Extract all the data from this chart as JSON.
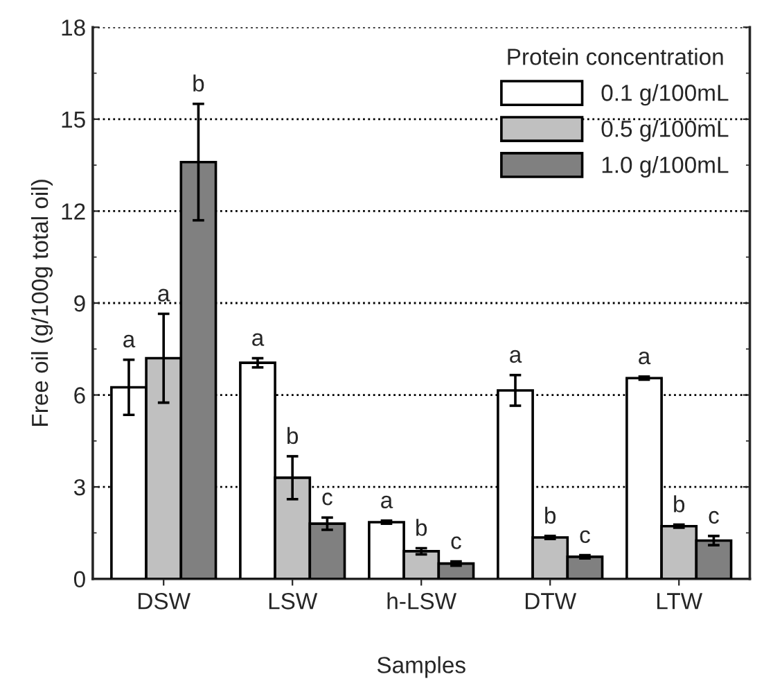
{
  "chart_data": {
    "type": "bar",
    "xlabel": "Samples",
    "ylabel": "Free oil (g/100g total oil)",
    "categories": [
      "DSW",
      "LSW",
      "h-LSW",
      "DTW",
      "LTW"
    ],
    "series": [
      {
        "name": "0.1 g/100mL",
        "color": "#ffffff",
        "values": [
          6.25,
          7.05,
          1.85,
          6.15,
          6.55
        ],
        "errors": [
          0.9,
          0.15,
          0.05,
          0.5,
          0.05
        ]
      },
      {
        "name": "0.5 g/100mL",
        "color": "#c0c0c0",
        "values": [
          7.2,
          3.3,
          0.9,
          1.35,
          1.72
        ],
        "errors": [
          1.45,
          0.7,
          0.1,
          0.05,
          0.05
        ]
      },
      {
        "name": "1.0 g/100mL",
        "color": "#808080",
        "values": [
          13.6,
          1.8,
          0.5,
          0.72,
          1.25
        ],
        "errors": [
          1.9,
          0.2,
          0.07,
          0.05,
          0.15
        ]
      }
    ],
    "ylim": [
      0,
      18
    ],
    "yticks": [
      0,
      3,
      6,
      9,
      12,
      15,
      18
    ],
    "grid": "y",
    "legend": "top right",
    "legend_title": "Protein concentration",
    "annotations": [
      "a",
      "a",
      "b",
      "a",
      "b",
      "c",
      "a",
      "b",
      "c",
      "a",
      "b",
      "c",
      "a",
      "b",
      "c"
    ]
  }
}
